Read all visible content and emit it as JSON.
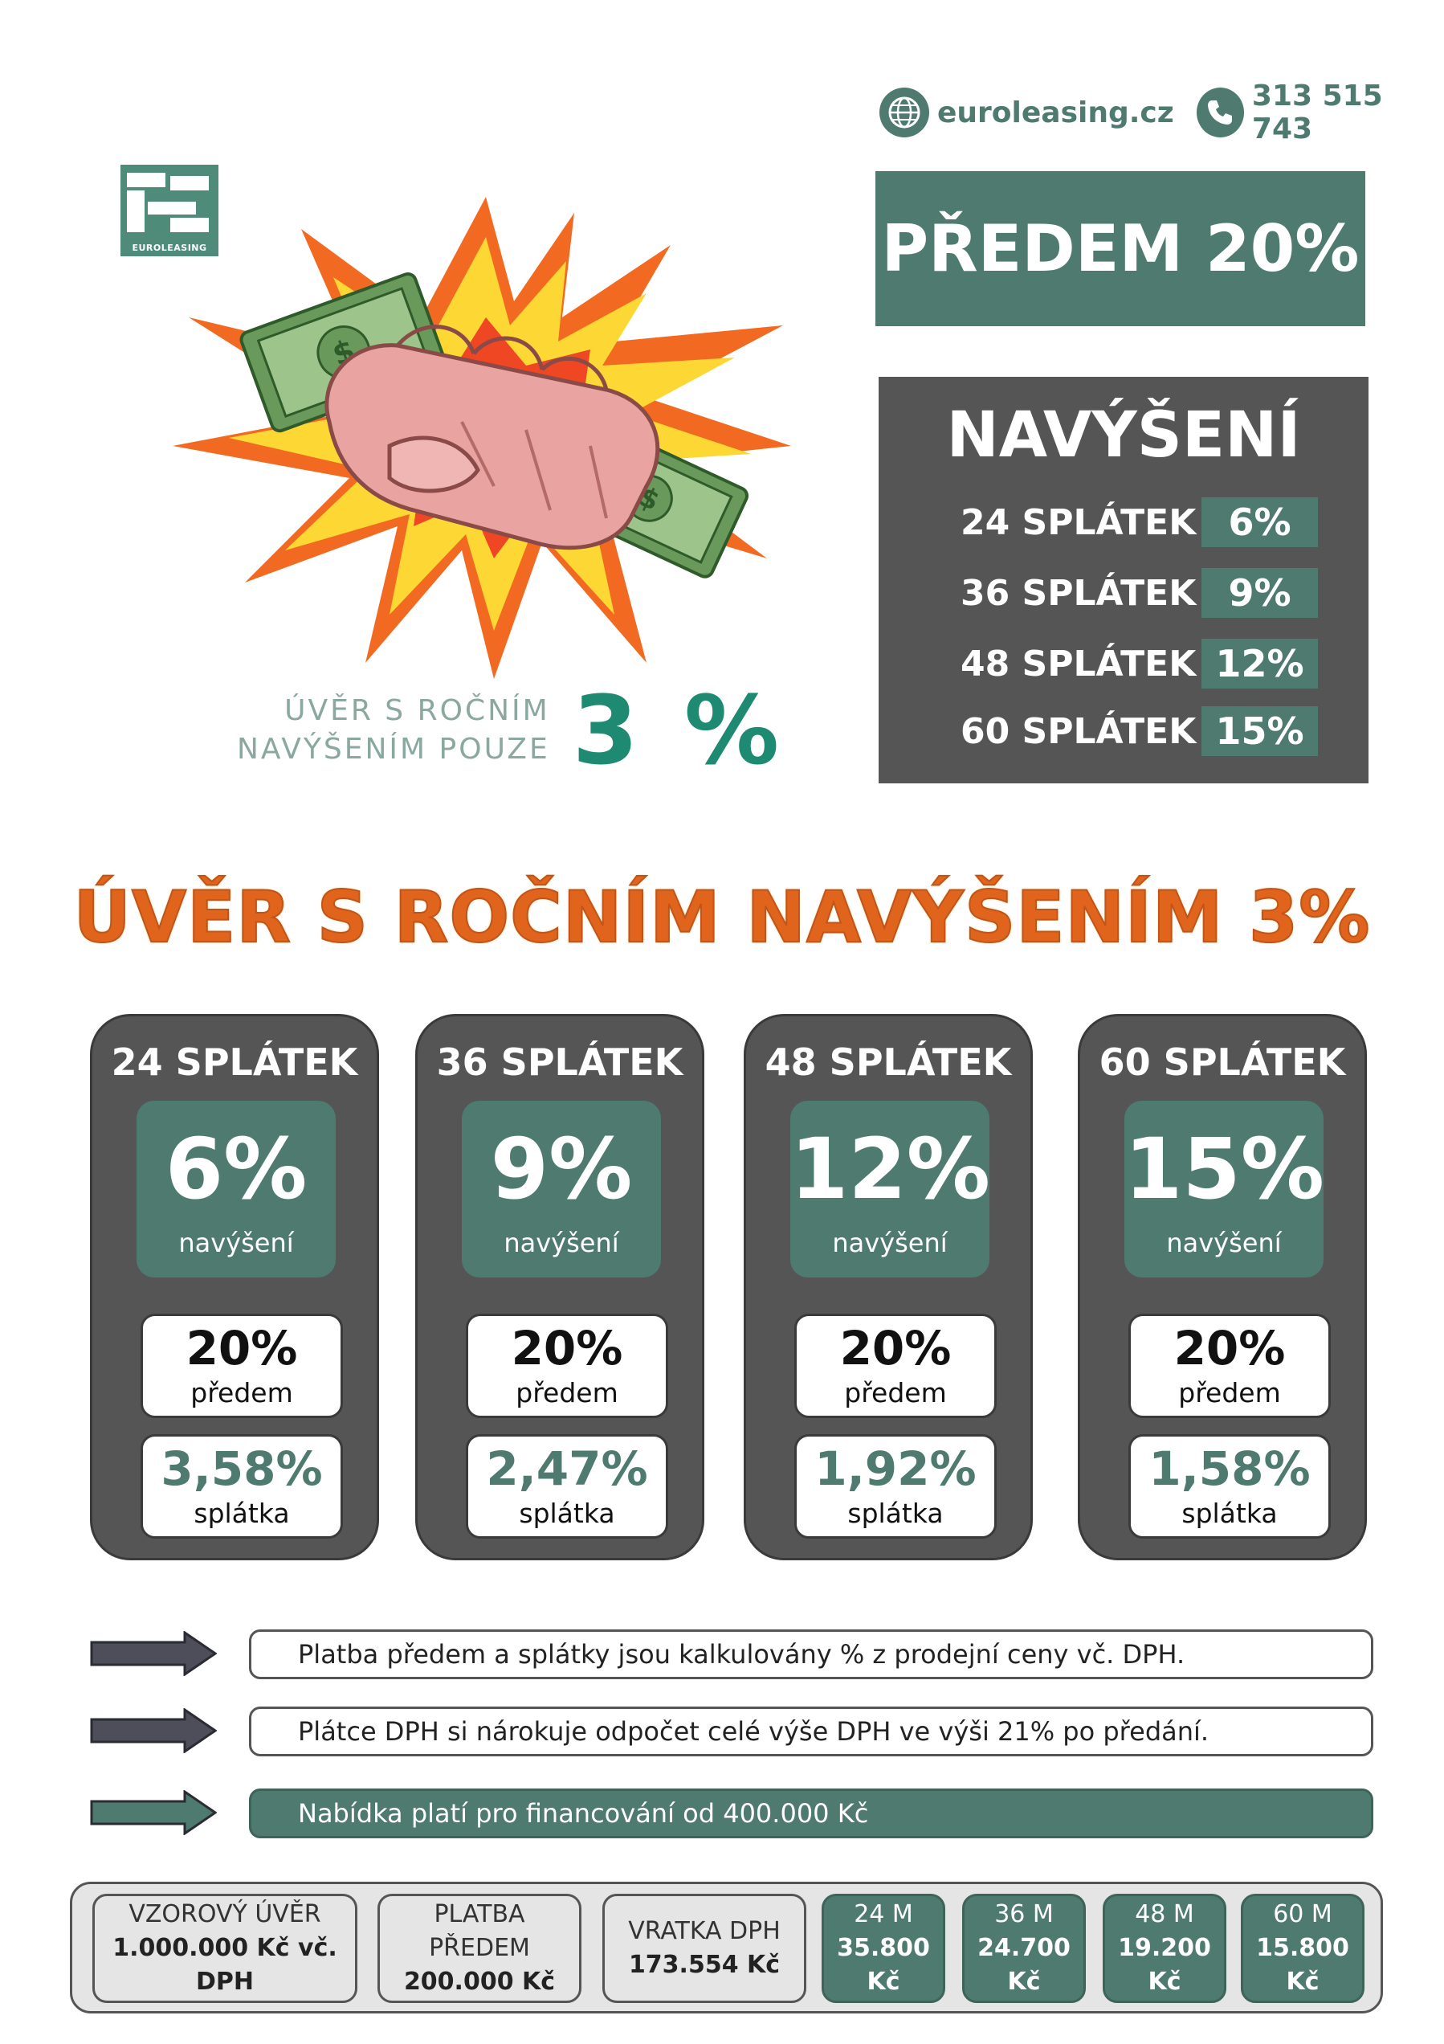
{
  "header": {
    "website": "euroleasing.cz",
    "phone": "313 515 743",
    "website_icon": "globe-icon",
    "phone_icon": "phone-icon"
  },
  "logo": {
    "text": "EUROLEASING"
  },
  "promo": {
    "line1": "ÚVĚR S ROČNÍM",
    "line2": "NAVÝŠENÍM POUZE",
    "big": "3 %"
  },
  "predem_box": {
    "label": "PŘEDEM 20%"
  },
  "navyseni_box": {
    "title": "NAVÝŠENÍ",
    "rows": [
      {
        "label": "24 SPLÁTEK",
        "value": "6%"
      },
      {
        "label": "36 SPLÁTEK",
        "value": "9%"
      },
      {
        "label": "48 SPLÁTEK",
        "value": "12%"
      },
      {
        "label": "60 SPLÁTEK",
        "value": "15%"
      }
    ]
  },
  "main_heading": "ÚVĚR S ROČNÍM NAVÝŠENÍM 3%",
  "cards": [
    {
      "title": "24 SPLÁTEK",
      "increase": "6%",
      "increase_label": "navýšení",
      "down": "20%",
      "down_label": "předem",
      "installment": "3,58%",
      "installment_label": "splátka"
    },
    {
      "title": "36 SPLÁTEK",
      "increase": "9%",
      "increase_label": "navýšení",
      "down": "20%",
      "down_label": "předem",
      "installment": "2,47%",
      "installment_label": "splátka"
    },
    {
      "title": "48 SPLÁTEK",
      "increase": "12%",
      "increase_label": "navýšení",
      "down": "20%",
      "down_label": "předem",
      "installment": "1,92%",
      "installment_label": "splátka"
    },
    {
      "title": "60 SPLÁTEK",
      "increase": "15%",
      "increase_label": "navýšení",
      "down": "20%",
      "down_label": "předem",
      "installment": "1,58%",
      "installment_label": "splátka"
    }
  ],
  "notes": [
    "Platba předem a splátky jsou kalkulovány % z prodejní ceny vč. DPH.",
    "Plátce DPH si nárokuje odpočet celé výše DPH ve výši 21% po předání.",
    "Nabídka platí pro financování od 400.000 Kč"
  ],
  "example": {
    "cells": [
      {
        "top": "VZOROVÝ ÚVĚR",
        "bottom": "1.000.000 Kč vč. DPH"
      },
      {
        "top": "PLATBA PŘEDEM",
        "bottom": "200.000 Kč"
      },
      {
        "top": "VRATKA DPH",
        "bottom": "173.554 Kč"
      },
      {
        "top": "24 M",
        "bottom": "35.800 Kč"
      },
      {
        "top": "36 M",
        "bottom": "24.700 Kč"
      },
      {
        "top": "48 M",
        "bottom": "19.200 Kč"
      },
      {
        "top": "60 M",
        "bottom": "15.800 Kč"
      }
    ]
  },
  "colors": {
    "brand_green": "#4e7a6f",
    "panel_grey": "#555555",
    "heading_orange": "#e1641c",
    "promo_teal": "#1f8a72"
  }
}
